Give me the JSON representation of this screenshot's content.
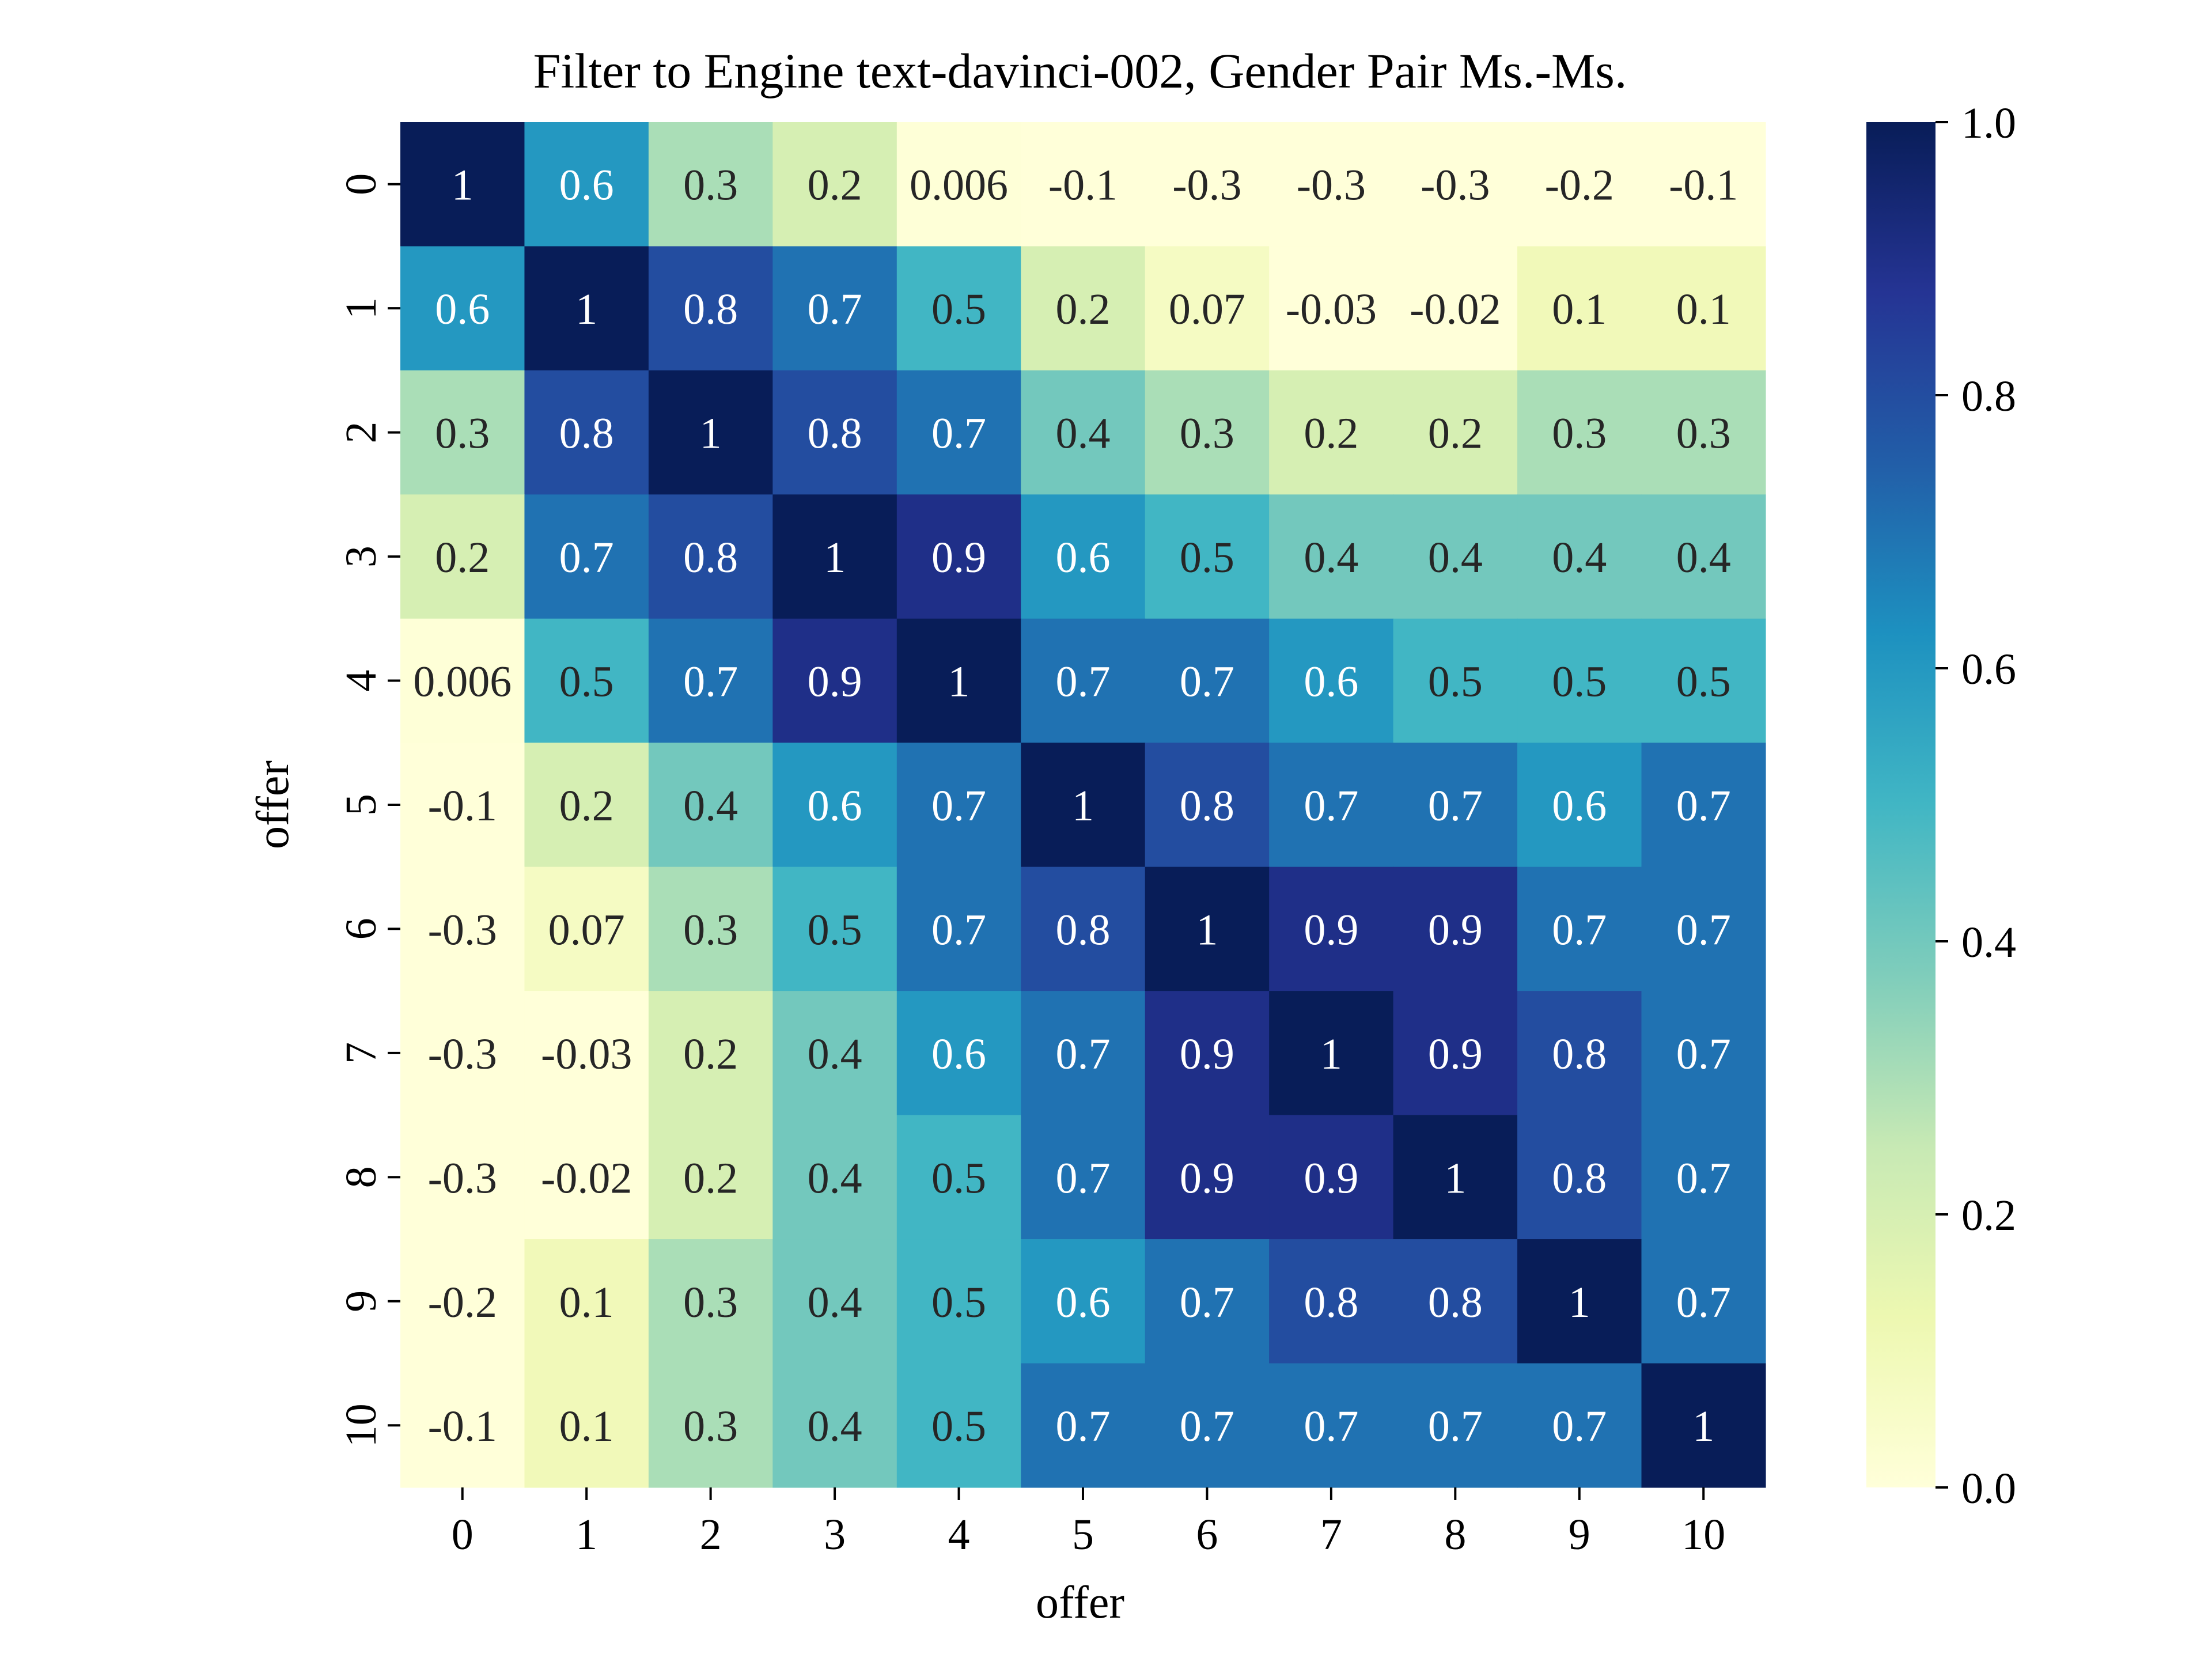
{
  "chart_data": {
    "type": "heatmap",
    "title": "Filter to Engine text-davinci-002, Gender Pair Ms.-Ms.",
    "xlabel": "offer",
    "ylabel": "offer",
    "x_categories": [
      "0",
      "1",
      "2",
      "3",
      "4",
      "5",
      "6",
      "7",
      "8",
      "9",
      "10"
    ],
    "y_categories": [
      "0",
      "1",
      "2",
      "3",
      "4",
      "5",
      "6",
      "7",
      "8",
      "9",
      "10"
    ],
    "values": [
      [
        1,
        0.6,
        0.3,
        0.2,
        0.006,
        -0.1,
        -0.3,
        -0.3,
        -0.3,
        -0.2,
        -0.1
      ],
      [
        0.6,
        1,
        0.8,
        0.7,
        0.5,
        0.2,
        0.07,
        -0.03,
        -0.02,
        0.1,
        0.1
      ],
      [
        0.3,
        0.8,
        1,
        0.8,
        0.7,
        0.4,
        0.3,
        0.2,
        0.2,
        0.3,
        0.3
      ],
      [
        0.2,
        0.7,
        0.8,
        1,
        0.9,
        0.6,
        0.5,
        0.4,
        0.4,
        0.4,
        0.4
      ],
      [
        0.006,
        0.5,
        0.7,
        0.9,
        1,
        0.7,
        0.7,
        0.6,
        0.5,
        0.5,
        0.5
      ],
      [
        -0.1,
        0.2,
        0.4,
        0.6,
        0.7,
        1,
        0.8,
        0.7,
        0.7,
        0.6,
        0.7
      ],
      [
        -0.3,
        0.07,
        0.3,
        0.5,
        0.7,
        0.8,
        1,
        0.9,
        0.9,
        0.7,
        0.7
      ],
      [
        -0.3,
        -0.03,
        0.2,
        0.4,
        0.6,
        0.7,
        0.9,
        1,
        0.9,
        0.8,
        0.7
      ],
      [
        -0.3,
        -0.02,
        0.2,
        0.4,
        0.5,
        0.7,
        0.9,
        0.9,
        1,
        0.8,
        0.7
      ],
      [
        -0.2,
        0.1,
        0.3,
        0.4,
        0.5,
        0.6,
        0.7,
        0.8,
        0.8,
        1,
        0.7
      ],
      [
        -0.1,
        0.1,
        0.3,
        0.4,
        0.5,
        0.7,
        0.7,
        0.7,
        0.7,
        0.7,
        1
      ]
    ],
    "cell_labels": [
      [
        "1",
        "0.6",
        "0.3",
        "0.2",
        "0.006",
        "-0.1",
        "-0.3",
        "-0.3",
        "-0.3",
        "-0.2",
        "-0.1"
      ],
      [
        "0.6",
        "1",
        "0.8",
        "0.7",
        "0.5",
        "0.2",
        "0.07",
        "-0.03",
        "-0.02",
        "0.1",
        "0.1"
      ],
      [
        "0.3",
        "0.8",
        "1",
        "0.8",
        "0.7",
        "0.4",
        "0.3",
        "0.2",
        "0.2",
        "0.3",
        "0.3"
      ],
      [
        "0.2",
        "0.7",
        "0.8",
        "1",
        "0.9",
        "0.6",
        "0.5",
        "0.4",
        "0.4",
        "0.4",
        "0.4"
      ],
      [
        "0.006",
        "0.5",
        "0.7",
        "0.9",
        "1",
        "0.7",
        "0.7",
        "0.6",
        "0.5",
        "0.5",
        "0.5"
      ],
      [
        "-0.1",
        "0.2",
        "0.4",
        "0.6",
        "0.7",
        "1",
        "0.8",
        "0.7",
        "0.7",
        "0.6",
        "0.7"
      ],
      [
        "-0.3",
        "0.07",
        "0.3",
        "0.5",
        "0.7",
        "0.8",
        "1",
        "0.9",
        "0.9",
        "0.7",
        "0.7"
      ],
      [
        "-0.3",
        "-0.03",
        "0.2",
        "0.4",
        "0.6",
        "0.7",
        "0.9",
        "1",
        "0.9",
        "0.8",
        "0.7"
      ],
      [
        "-0.3",
        "-0.02",
        "0.2",
        "0.4",
        "0.5",
        "0.7",
        "0.9",
        "0.9",
        "1",
        "0.8",
        "0.7"
      ],
      [
        "-0.2",
        "0.1",
        "0.3",
        "0.4",
        "0.5",
        "0.6",
        "0.7",
        "0.8",
        "0.8",
        "1",
        "0.7"
      ],
      [
        "-0.1",
        "0.1",
        "0.3",
        "0.4",
        "0.5",
        "0.7",
        "0.7",
        "0.7",
        "0.7",
        "0.7",
        "1"
      ]
    ],
    "colorbar": {
      "vmin": 0.0,
      "vmax": 1.0,
      "ticks": [
        0.0,
        0.2,
        0.4,
        0.6,
        0.8,
        1.0
      ],
      "tick_labels": [
        "0.0",
        "0.2",
        "0.4",
        "0.6",
        "0.8",
        "1.0"
      ],
      "colormap": "YlGnBu",
      "colors": [
        "#ffffd9",
        "#edf8b1",
        "#c7e9b4",
        "#7fcdbb",
        "#41b6c4",
        "#1d91c0",
        "#225ea8",
        "#253494",
        "#081d58"
      ]
    },
    "grid": false,
    "legend": "colorbar-right"
  }
}
